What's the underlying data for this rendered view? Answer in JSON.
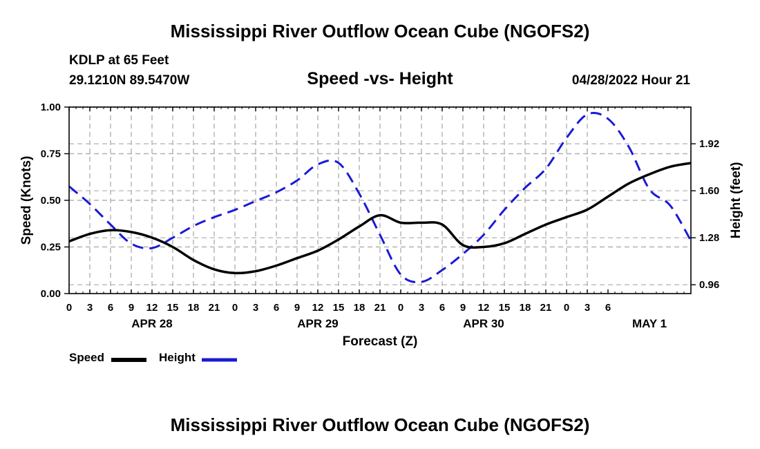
{
  "page": {
    "title": "Mississippi River Outflow Ocean Cube (NGOFS2)",
    "bottom_title": "Mississippi River Outflow Ocean Cube (NGOFS2)",
    "station": "KDLP at 65 Feet",
    "coords": "29.1210N  89.5470W",
    "subtitle": "Speed -vs- Height",
    "datetime": "04/28/2022 Hour 21"
  },
  "legend": {
    "speed_label": "Speed",
    "height_label": "Height"
  },
  "colors": {
    "speed": "#000000",
    "height": "#1a1ad6",
    "grid": "#b0b0b0"
  },
  "chart_data": {
    "type": "line",
    "title": "Speed -vs- Height",
    "xlabel": "Forecast (Z)",
    "ylabel": "Speed (Knots)",
    "y2label": "Height (feet)",
    "x_hours_from_apr28_00z": [
      0,
      90
    ],
    "x_tick_labels": [
      "0",
      "3",
      "6",
      "9",
      "12",
      "15",
      "18",
      "21",
      "0",
      "3",
      "6",
      "9",
      "12",
      "15",
      "18",
      "21",
      "0",
      "3",
      "6",
      "9",
      "12",
      "15",
      "18",
      "21",
      "0",
      "3",
      "6"
    ],
    "date_labels": [
      {
        "label": "APR 28",
        "hour": 12
      },
      {
        "label": "APR 29",
        "hour": 36
      },
      {
        "label": "APR 30",
        "hour": 60
      },
      {
        "label": "MAY 1",
        "hour": 84
      }
    ],
    "ylim": [
      0,
      1.0
    ],
    "y_ticks": [
      0.0,
      0.25,
      0.5,
      0.75,
      1.0
    ],
    "y_tick_labels": [
      "0.00",
      "0.25",
      "0.50",
      "0.75",
      "1.00"
    ],
    "y2lim": [
      0.9,
      2.17
    ],
    "y2_ticks": [
      0.96,
      1.28,
      1.6,
      1.92
    ],
    "y2_tick_labels": [
      "0.96",
      "1.28",
      "1.60",
      "1.92"
    ],
    "series": [
      {
        "name": "Speed",
        "axis": "left",
        "x": [
          0,
          3,
          6,
          9,
          12,
          15,
          18,
          21,
          24,
          27,
          30,
          33,
          36,
          39,
          42,
          45,
          48,
          51,
          54,
          57,
          60,
          63,
          66,
          69,
          72,
          75,
          78,
          81,
          84,
          87,
          90
        ],
        "values": [
          0.28,
          0.32,
          0.34,
          0.33,
          0.3,
          0.25,
          0.18,
          0.13,
          0.11,
          0.12,
          0.15,
          0.19,
          0.23,
          0.29,
          0.36,
          0.42,
          0.38,
          0.38,
          0.37,
          0.26,
          0.25,
          0.27,
          0.32,
          0.37,
          0.41,
          0.45,
          0.52,
          0.59,
          0.64,
          0.68,
          0.7
        ]
      },
      {
        "name": "Height",
        "axis": "right",
        "x": [
          0,
          3,
          6,
          9,
          12,
          15,
          18,
          21,
          24,
          27,
          30,
          33,
          36,
          39,
          42,
          45,
          48,
          51,
          54,
          57,
          60,
          63,
          66,
          69,
          72,
          75,
          78,
          81,
          84,
          87,
          90
        ],
        "values": [
          1.63,
          1.51,
          1.37,
          1.24,
          1.21,
          1.28,
          1.36,
          1.42,
          1.47,
          1.53,
          1.59,
          1.67,
          1.78,
          1.79,
          1.58,
          1.3,
          1.03,
          0.98,
          1.06,
          1.17,
          1.3,
          1.47,
          1.62,
          1.75,
          1.96,
          2.12,
          2.09,
          1.9,
          1.61,
          1.5,
          1.26
        ]
      }
    ]
  }
}
